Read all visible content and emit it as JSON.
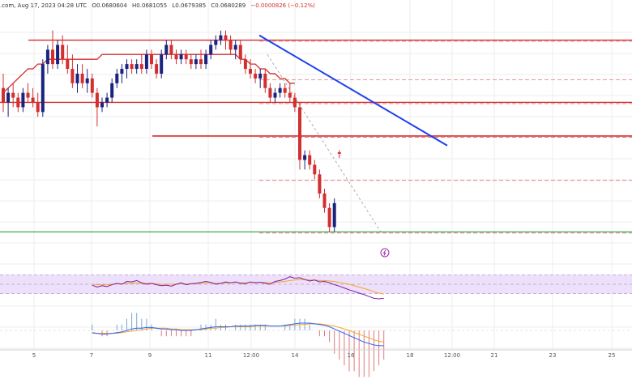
{
  "header": {
    "source_fragment": ".com, Aug 17, 2023 04:28 UTC",
    "open": "O0.0680604",
    "high": "H0.0681055",
    "low": "L0.0679385",
    "close": "C0.0680289",
    "change": "−0.0000826 (−0.12%)"
  },
  "colors": {
    "up": "#1a237e",
    "down": "#d32f2f",
    "sma": "#d32f2f",
    "trendline": "#1e40ef",
    "support": "#2e9e3e",
    "rsi_line": "#7b1fa2",
    "rsi_signal": "#f5a623",
    "rsi_band": "#ede0fa",
    "macd_line": "#2962ff",
    "macd_signal": "#f5a623",
    "hist_pos": "#7aa8d8",
    "hist_neg": "#e07a7a",
    "grid": "#eeeeee"
  },
  "chart_data": {
    "type": "candlestick",
    "x_ticks": [
      "5",
      "7",
      "9",
      "11",
      "12:00",
      "14",
      "16",
      "18",
      "12:00",
      "21",
      "23",
      "25"
    ],
    "candles": [
      [
        0.0694,
        0.0697,
        0.0689,
        0.0691
      ],
      [
        0.0691,
        0.0694,
        0.0688,
        0.0693
      ],
      [
        0.0693,
        0.0695,
        0.069,
        0.0692
      ],
      [
        0.0692,
        0.0693,
        0.0689,
        0.069
      ],
      [
        0.069,
        0.0694,
        0.0689,
        0.0693
      ],
      [
        0.0693,
        0.0695,
        0.0691,
        0.0692
      ],
      [
        0.0692,
        0.0694,
        0.069,
        0.0691
      ],
      [
        0.0691,
        0.0693,
        0.0688,
        0.0689
      ],
      [
        0.0689,
        0.07,
        0.0688,
        0.0699
      ],
      [
        0.0699,
        0.0703,
        0.0697,
        0.0702
      ],
      [
        0.0702,
        0.0706,
        0.0698,
        0.0699
      ],
      [
        0.0699,
        0.0704,
        0.0698,
        0.0703
      ],
      [
        0.0703,
        0.0705,
        0.0699,
        0.07
      ],
      [
        0.07,
        0.0703,
        0.0697,
        0.0698
      ],
      [
        0.0698,
        0.0701,
        0.0694,
        0.0695
      ],
      [
        0.0695,
        0.0699,
        0.0693,
        0.0697
      ],
      [
        0.0697,
        0.0699,
        0.0694,
        0.0695
      ],
      [
        0.0695,
        0.0698,
        0.0693,
        0.0696
      ],
      [
        0.0696,
        0.0697,
        0.0692,
        0.0693
      ],
      [
        0.0693,
        0.0694,
        0.0686,
        0.069
      ],
      [
        0.069,
        0.0692,
        0.0689,
        0.0691
      ],
      [
        0.0691,
        0.0693,
        0.069,
        0.0692
      ],
      [
        0.0692,
        0.0696,
        0.0691,
        0.0695
      ],
      [
        0.0695,
        0.0698,
        0.0694,
        0.0697
      ],
      [
        0.0697,
        0.0699,
        0.0695,
        0.0698
      ],
      [
        0.0698,
        0.07,
        0.0696,
        0.0699
      ],
      [
        0.0699,
        0.07,
        0.0697,
        0.0698
      ],
      [
        0.0698,
        0.07,
        0.0697,
        0.0699
      ],
      [
        0.0699,
        0.0701,
        0.0697,
        0.0698
      ],
      [
        0.0698,
        0.0702,
        0.0697,
        0.0701
      ],
      [
        0.0701,
        0.0702,
        0.0698,
        0.0699
      ],
      [
        0.0699,
        0.07,
        0.0696,
        0.0697
      ],
      [
        0.0697,
        0.0702,
        0.0696,
        0.0701
      ],
      [
        0.0701,
        0.0704,
        0.07,
        0.0703
      ],
      [
        0.0703,
        0.0704,
        0.07,
        0.0701
      ],
      [
        0.0701,
        0.0702,
        0.0699,
        0.07
      ],
      [
        0.07,
        0.0702,
        0.0699,
        0.0701
      ],
      [
        0.0701,
        0.0702,
        0.0699,
        0.07
      ],
      [
        0.07,
        0.0701,
        0.0698,
        0.0699
      ],
      [
        0.0699,
        0.0701,
        0.0698,
        0.07
      ],
      [
        0.07,
        0.0702,
        0.0698,
        0.0699
      ],
      [
        0.0699,
        0.0702,
        0.0698,
        0.0701
      ],
      [
        0.0701,
        0.0704,
        0.07,
        0.0703
      ],
      [
        0.0703,
        0.0705,
        0.0702,
        0.0704
      ],
      [
        0.0704,
        0.0706,
        0.0703,
        0.0705
      ],
      [
        0.0705,
        0.0706,
        0.0702,
        0.0704
      ],
      [
        0.0704,
        0.0705,
        0.0701,
        0.0702
      ],
      [
        0.0702,
        0.0704,
        0.07,
        0.0703
      ],
      [
        0.0703,
        0.0704,
        0.0699,
        0.07
      ],
      [
        0.07,
        0.0701,
        0.0697,
        0.0698
      ],
      [
        0.0698,
        0.07,
        0.0696,
        0.0697
      ],
      [
        0.0697,
        0.0698,
        0.0695,
        0.0696
      ],
      [
        0.0696,
        0.0698,
        0.0694,
        0.0697
      ],
      [
        0.0697,
        0.0698,
        0.0693,
        0.0694
      ],
      [
        0.0694,
        0.0695,
        0.0691,
        0.0692
      ],
      [
        0.0692,
        0.0694,
        0.0691,
        0.0693
      ],
      [
        0.0693,
        0.0695,
        0.0692,
        0.0694
      ],
      [
        0.0694,
        0.0695,
        0.0692,
        0.0693
      ],
      [
        0.0693,
        0.0695,
        0.0691,
        0.0692
      ],
      [
        0.0692,
        0.0693,
        0.0689,
        0.069
      ],
      [
        0.069,
        0.0691,
        0.0677,
        0.0679
      ],
      [
        0.0679,
        0.0681,
        0.0677,
        0.068
      ],
      [
        0.068,
        0.0681,
        0.0677,
        0.0678
      ],
      [
        0.0678,
        0.0679,
        0.0675,
        0.0676
      ],
      [
        0.0676,
        0.0677,
        0.0671,
        0.0672
      ],
      [
        0.0672,
        0.0673,
        0.0668,
        0.0669
      ],
      [
        0.0669,
        0.067,
        0.0664,
        0.0665
      ],
      [
        0.0665,
        0.0671,
        0.0664,
        0.067
      ],
      [
        0.0680604,
        0.0681055,
        0.0679385,
        0.0680289
      ]
    ],
    "moving_average": [
      0.0693,
      0.0694,
      0.0695,
      0.0696,
      0.0697,
      0.0698,
      0.0698,
      0.0699,
      0.0699,
      0.07,
      0.07,
      0.07,
      0.07,
      0.07,
      0.07,
      0.07,
      0.07,
      0.07,
      0.07,
      0.07,
      0.0701,
      0.0701,
      0.0701,
      0.0701,
      0.0701,
      0.0701,
      0.0701,
      0.0701,
      0.0701,
      0.0701,
      0.0701,
      0.0701,
      0.0701,
      0.0701,
      0.0701,
      0.0701,
      0.0701,
      0.0701,
      0.0701,
      0.0701,
      0.0701,
      0.0701,
      0.0701,
      0.0701,
      0.0701,
      0.0701,
      0.0701,
      0.0701,
      0.07,
      0.07,
      0.0699,
      0.0699,
      0.0698,
      0.0698,
      0.0697,
      0.0697,
      0.0696,
      0.0696,
      0.0695,
      0.0695
    ],
    "trendline": [
      [
        0.0702,
        0.0705
      ],
      [
        0.076,
        0.0682
      ]
    ],
    "horizontal_levels": {
      "resistance_top": 0.0704,
      "resistance_mid": 0.0691,
      "resistance_lower": 0.0684,
      "support": 0.0664
    },
    "dashed_levels": [
      0.0704,
      0.0696,
      0.0691,
      0.0684,
      0.0675,
      0.0664
    ],
    "rsi": {
      "range": [
        0,
        100
      ],
      "band": [
        30,
        70
      ],
      "line": [
        48,
        44,
        47,
        45,
        49,
        52,
        50,
        56,
        55,
        58,
        53,
        50,
        52,
        49,
        47,
        48,
        46,
        50,
        53,
        49,
        51,
        52,
        54,
        56,
        54,
        50,
        52,
        55,
        53,
        55,
        52,
        51,
        55,
        53,
        54,
        52,
        50,
        56,
        58,
        61,
        66,
        63,
        64,
        60,
        57,
        59,
        55,
        56,
        53,
        49,
        46,
        42,
        38,
        35,
        31,
        28,
        24,
        20,
        19,
        20
      ],
      "signal": [
        50,
        49,
        49,
        49,
        50,
        51,
        51,
        52,
        52,
        53,
        52,
        52,
        52,
        51,
        50,
        50,
        50,
        50,
        51,
        51,
        51,
        51,
        52,
        53,
        53,
        52,
        52,
        53,
        53,
        54,
        53,
        53,
        54,
        54,
        54,
        54,
        53,
        54,
        55,
        56,
        58,
        59,
        60,
        60,
        59,
        59,
        58,
        58,
        57,
        56,
        54,
        52,
        50,
        47,
        44,
        41,
        38,
        34,
        31,
        29
      ]
    },
    "macd": {
      "line": [
        -0.3,
        -0.4,
        -0.5,
        -0.5,
        -0.4,
        -0.3,
        -0.2,
        0.0,
        0.2,
        0.3,
        0.3,
        0.4,
        0.4,
        0.3,
        0.2,
        0.2,
        0.1,
        0.1,
        0.0,
        0.0,
        0.0,
        0.1,
        0.2,
        0.3,
        0.4,
        0.5,
        0.5,
        0.5,
        0.5,
        0.6,
        0.6,
        0.6,
        0.6,
        0.7,
        0.7,
        0.7,
        0.6,
        0.6,
        0.6,
        0.7,
        0.8,
        0.9,
        1.0,
        1.0,
        1.0,
        0.9,
        0.8,
        0.7,
        0.5,
        0.2,
        -0.1,
        -0.4,
        -0.7,
        -1.0,
        -1.3,
        -1.6,
        -1.8,
        -2.0,
        -2.1,
        -2.1
      ],
      "signal": [
        -0.4,
        -0.4,
        -0.4,
        -0.4,
        -0.4,
        -0.4,
        -0.3,
        -0.2,
        -0.1,
        0.0,
        0.1,
        0.2,
        0.3,
        0.3,
        0.3,
        0.3,
        0.2,
        0.2,
        0.1,
        0.1,
        0.1,
        0.1,
        0.1,
        0.2,
        0.3,
        0.3,
        0.4,
        0.4,
        0.5,
        0.5,
        0.5,
        0.5,
        0.5,
        0.6,
        0.6,
        0.6,
        0.6,
        0.6,
        0.6,
        0.6,
        0.7,
        0.7,
        0.8,
        0.8,
        0.9,
        0.9,
        0.9,
        0.8,
        0.7,
        0.6,
        0.4,
        0.2,
        0.0,
        -0.3,
        -0.5,
        -0.8,
        -1.0,
        -1.3,
        -1.5,
        -1.6
      ]
    }
  }
}
